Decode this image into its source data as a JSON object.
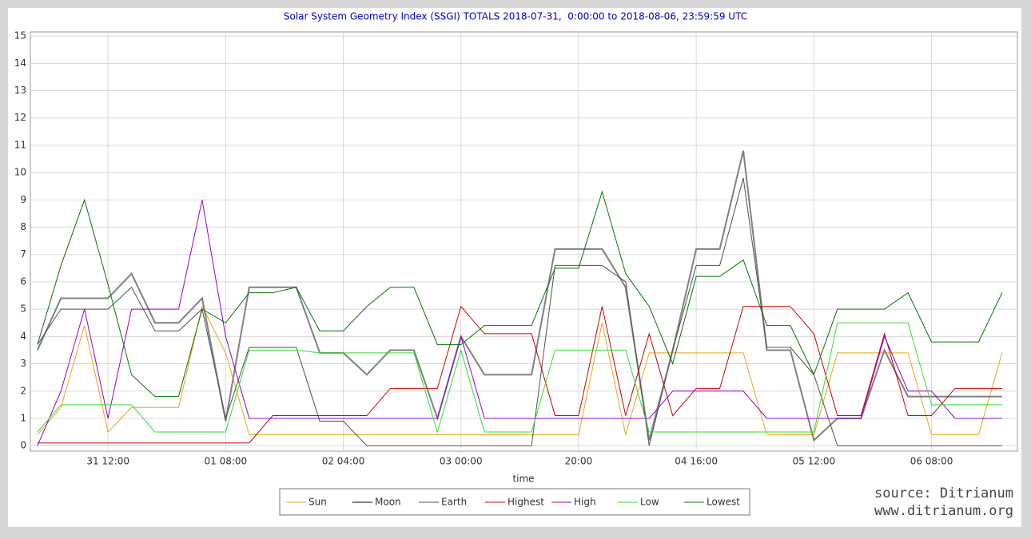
{
  "chart_data": {
    "type": "line",
    "title": "Solar System Geometry Index (SSGI) TOTALS 2018-07-31,  0:00:00 to 2018-08-06, 23:59:59 UTC",
    "xlabel": "time",
    "annotations": [
      "source: Ditrianum",
      "www.ditrianum.org"
    ],
    "x": [
      0,
      4,
      8,
      12,
      16,
      20,
      24,
      28,
      32,
      36,
      40,
      44,
      48,
      52,
      56,
      60,
      64,
      68,
      72,
      76,
      80,
      84,
      88,
      92,
      96,
      100,
      104,
      108,
      112,
      116,
      120,
      124,
      128,
      132,
      136,
      140,
      144,
      148,
      152,
      156,
      160,
      164
    ],
    "xlim": [
      -1.2,
      166.6
    ],
    "xticks": [
      {
        "value": 12,
        "label": "31 12:00"
      },
      {
        "value": 32,
        "label": "01 08:00"
      },
      {
        "value": 52,
        "label": "02 04:00"
      },
      {
        "value": 72,
        "label": "03 00:00"
      },
      {
        "value": 92,
        "label": "20:00"
      },
      {
        "value": 112,
        "label": "04 16:00"
      },
      {
        "value": 132,
        "label": "05 12:00"
      },
      {
        "value": 152,
        "label": "06 08:00"
      }
    ],
    "ylim": [
      -0.2,
      15.15
    ],
    "yticks": [
      0,
      1,
      2,
      3,
      4,
      5,
      6,
      7,
      8,
      9,
      10,
      11,
      12,
      13,
      14,
      15
    ],
    "grid": true,
    "series": [
      {
        "name": "Sun",
        "color": "#e6a817",
        "values": [
          0.4,
          1.4,
          4.4,
          0.5,
          1.4,
          1.4,
          1.4,
          5.1,
          3.4,
          0.4,
          0.4,
          0.4,
          0.4,
          0.4,
          0.4,
          0.4,
          0.4,
          0.4,
          0.4,
          0.4,
          0.4,
          0.4,
          0.4,
          0.4,
          4.5,
          0.4,
          3.4,
          3.4,
          3.4,
          3.4,
          3.4,
          0.4,
          0.4,
          0.4,
          3.4,
          3.4,
          3.4,
          3.4,
          0.4,
          0.4,
          0.4,
          3.4
        ]
      },
      {
        "name": "Moon",
        "color": "#808080",
        "values": [
          3.5,
          5.4,
          5.4,
          5.4,
          6.3,
          4.5,
          4.5,
          5.4,
          0.9,
          5.8,
          5.8,
          5.8,
          3.4,
          3.4,
          2.6,
          3.5,
          3.5,
          1.0,
          4.0,
          2.6,
          2.6,
          2.6,
          7.2,
          7.2,
          7.2,
          5.8,
          0.2,
          3.5,
          7.2,
          7.2,
          10.8,
          3.5,
          3.5,
          0.2,
          1.0,
          1.0,
          3.5,
          1.8,
          1.8,
          1.8,
          1.8,
          1.8
        ]
      },
      {
        "name": "Earth",
        "color": "#505050",
        "values": [
          3.7,
          5.0,
          5.0,
          5.0,
          5.8,
          4.2,
          4.2,
          5.0,
          1.0,
          3.6,
          3.6,
          3.6,
          0.9,
          0.9,
          0,
          0,
          0,
          0,
          0,
          0,
          0,
          0,
          6.6,
          6.6,
          6.6,
          6.0,
          0,
          3.5,
          6.6,
          6.6,
          9.8,
          3.6,
          3.6,
          2.6,
          0,
          0,
          0,
          0,
          0,
          0,
          0,
          0
        ]
      },
      {
        "name": "Highest",
        "color": "#cc0000",
        "values": [
          0.1,
          0.1,
          0.1,
          0.1,
          0.1,
          0.1,
          0.1,
          0.1,
          0.1,
          0.1,
          1.1,
          1.1,
          1.1,
          1.1,
          1.1,
          2.1,
          2.1,
          2.1,
          5.1,
          4.1,
          4.1,
          4.1,
          1.1,
          1.1,
          5.1,
          1.1,
          4.1,
          1.1,
          2.1,
          2.1,
          5.1,
          5.1,
          5.1,
          4.1,
          1.1,
          1.1,
          4.1,
          1.1,
          1.1,
          2.1,
          2.1,
          2.1
        ]
      },
      {
        "name": "High",
        "color": "#9900cc",
        "values": [
          0,
          2.0,
          5.0,
          1.0,
          5.0,
          5.0,
          5.0,
          9.0,
          4.0,
          1.0,
          1.0,
          1.0,
          1.0,
          1.0,
          1.0,
          1.0,
          1.0,
          1.0,
          4.0,
          1.0,
          1.0,
          1.0,
          1.0,
          1.0,
          1.0,
          1.0,
          1.0,
          2.0,
          2.0,
          2.0,
          2.0,
          1.0,
          1.0,
          1.0,
          1.0,
          1.0,
          4.0,
          2.0,
          2.0,
          1.0,
          1.0,
          1.0
        ]
      },
      {
        "name": "Low",
        "color": "#33dd33",
        "values": [
          0.5,
          1.5,
          1.5,
          1.5,
          1.5,
          0.5,
          0.5,
          0.5,
          0.5,
          3.5,
          3.5,
          3.5,
          3.4,
          3.4,
          3.4,
          3.4,
          3.4,
          0.5,
          3.5,
          0.5,
          0.5,
          0.5,
          3.5,
          3.5,
          3.5,
          3.5,
          0.5,
          0.5,
          0.5,
          0.5,
          0.5,
          0.5,
          0.5,
          0.5,
          4.5,
          4.5,
          4.5,
          4.5,
          1.5,
          1.5,
          1.5,
          1.5
        ]
      },
      {
        "name": "Lowest",
        "color": "#007700",
        "values": [
          3.7,
          6.6,
          9.0,
          5.9,
          2.6,
          1.8,
          1.8,
          5.0,
          4.5,
          5.6,
          5.6,
          5.8,
          4.2,
          4.2,
          5.1,
          5.8,
          5.8,
          3.7,
          3.7,
          4.4,
          4.4,
          4.4,
          6.5,
          6.5,
          9.3,
          6.3,
          5.1,
          3.0,
          6.2,
          6.2,
          6.8,
          4.4,
          4.4,
          2.6,
          5.0,
          5.0,
          5.0,
          5.6,
          3.8,
          3.8,
          3.8,
          5.6
        ]
      }
    ]
  }
}
